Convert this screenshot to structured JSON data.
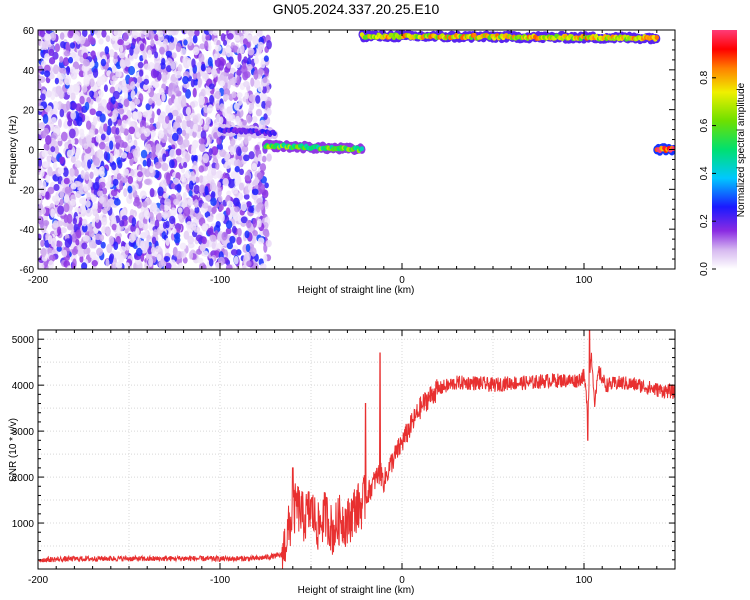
{
  "title": "GN05.2024.337.20.25.E10",
  "chart_data": [
    {
      "type": "heatmap",
      "xlabel": "Height of straight line (km)",
      "ylabel": "Frequency (Hz)",
      "xlim": [
        -200,
        150
      ],
      "ylim": [
        -60,
        60
      ],
      "x_ticks": [
        "-200",
        "-100",
        "0",
        "100"
      ],
      "y_ticks": [
        "-60",
        "-40",
        "-20",
        "0",
        "20",
        "40",
        "60"
      ],
      "colorbar": {
        "label": "Normalized spectral amplitude",
        "range": [
          0.0,
          1.0
        ],
        "ticks": [
          "0.0",
          "0.2",
          "0.4",
          "0.6",
          "0.8"
        ],
        "colors": [
          "#ffffff",
          "#d6b8f0",
          "#8a2be2",
          "#1a1aff",
          "#00c8ff",
          "#00e070",
          "#6ee000",
          "#f0f000",
          "#ff8000",
          "#ff0000",
          "#ff3c78"
        ]
      },
      "regions": [
        {
          "name": "noise",
          "x": [
            -200,
            -73
          ],
          "y": [
            -60,
            60
          ],
          "amplitude": 0.15
        },
        {
          "name": "band-low",
          "x": [
            -100,
            -70
          ],
          "y": [
            10,
            8
          ],
          "amplitude": 0.25
        },
        {
          "name": "band-low",
          "x": [
            -75,
            -22
          ],
          "y": [
            2,
            0
          ],
          "amplitude": 0.55
        },
        {
          "name": "band-high",
          "x": [
            -22,
            140
          ],
          "y": [
            57,
            56
          ],
          "amplitude": 0.7
        },
        {
          "name": "band-zero",
          "x": [
            140,
            150
          ],
          "y": [
            0,
            0
          ],
          "amplitude": 0.9
        }
      ]
    },
    {
      "type": "line",
      "xlabel": "Height of straight line (km)",
      "ylabel": "SNR (10 * v/v)",
      "xlim": [
        -200,
        150
      ],
      "ylim": [
        0,
        5200
      ],
      "x_ticks": [
        "-200",
        "-100",
        "0",
        "100"
      ],
      "y_ticks": [
        "1000",
        "2000",
        "3000",
        "4000",
        "5000"
      ],
      "grid": true,
      "line_color": "#e83030",
      "series": [
        {
          "x": [
            -200,
            -180,
            -160,
            -140,
            -120,
            -100,
            -80,
            -66,
            -62,
            -58,
            -54,
            -50,
            -46,
            -42,
            -38,
            -34,
            -30,
            -26,
            -22,
            -18,
            -14,
            -12,
            -10,
            -6,
            -2,
            2,
            6,
            10,
            14,
            18,
            22,
            26,
            30,
            40,
            50,
            60,
            70,
            80,
            90,
            96,
            100,
            102,
            104,
            106,
            108,
            112,
            120,
            130,
            140,
            150
          ],
          "y": [
            200,
            220,
            230,
            220,
            230,
            220,
            230,
            300,
            900,
            1400,
            1100,
            1300,
            900,
            1200,
            800,
            1100,
            1000,
            1300,
            1400,
            1700,
            2000,
            2100,
            1900,
            2300,
            2600,
            2900,
            3200,
            3500,
            3700,
            3850,
            3950,
            4000,
            4050,
            4050,
            4000,
            4050,
            4050,
            4100,
            4100,
            4100,
            4200,
            3500,
            4700,
            3600,
            4300,
            4000,
            4050,
            4000,
            3900,
            3850
          ]
        }
      ],
      "spikes": [
        {
          "x": -60,
          "y": 2200
        },
        {
          "x": -12,
          "y": 4700
        },
        {
          "x": -20,
          "y": 3600
        },
        {
          "x": 103,
          "y": 5200
        },
        {
          "x": 102,
          "y": 2800
        }
      ]
    }
  ]
}
